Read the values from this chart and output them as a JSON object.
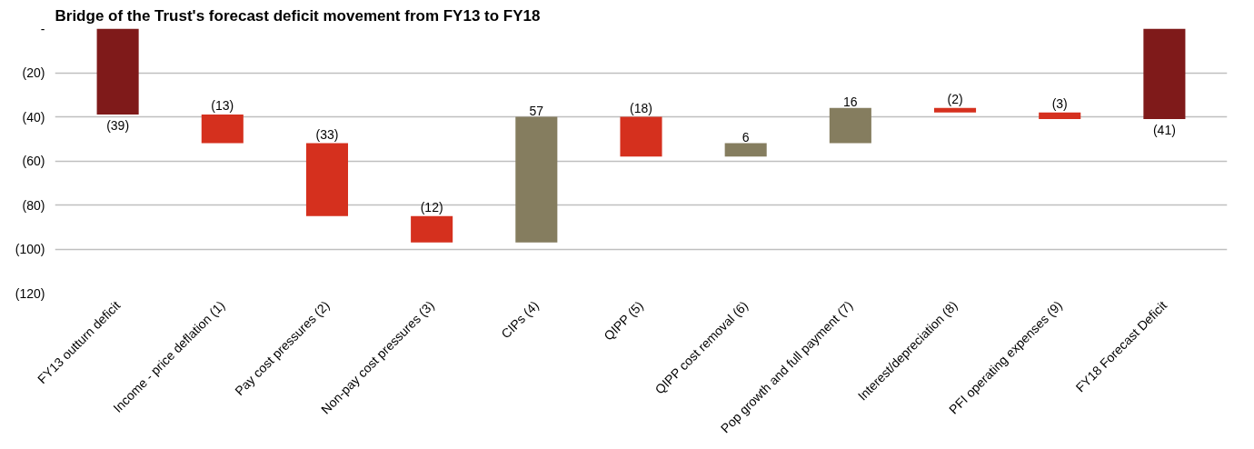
{
  "chart_data": {
    "type": "bar",
    "title": "Bridge of the Trust's forecast deficit movement from FY13 to FY18",
    "categories": [
      "FY13 outturn deficit",
      "Income - price deflation (1)",
      "Pay cost pressures (2)",
      "Non-pay cost pressures (3)",
      "CIPs (4)",
      "QIPP (5)",
      "QIPP cost removal (6)",
      "Pop growth and full payment (7)",
      "Interest/depreciation (8)",
      "PFI operating expenses (9)",
      "FY18 Forecast Deficit"
    ],
    "values": [
      -39,
      -13,
      -33,
      -12,
      57,
      -18,
      6,
      16,
      -2,
      -3,
      -41
    ],
    "base": [
      0,
      -39,
      -52,
      -85,
      -97,
      -40,
      -58,
      -52,
      -36,
      -38,
      0
    ],
    "colors": [
      "#7f1a1a",
      "#d5301e",
      "#d5301e",
      "#d5301e",
      "#857d5f",
      "#d5301e",
      "#857d5f",
      "#857d5f",
      "#d5301e",
      "#d5301e",
      "#7f1a1a"
    ],
    "value_labels": [
      "(39)",
      "(13)",
      "(33)",
      "(12)",
      "57",
      "(18)",
      "6",
      "16",
      "(2)",
      "(3)",
      "(41)"
    ],
    "ylim": [
      -120,
      0
    ],
    "yticks": [
      {
        "value": 0,
        "label": "-"
      },
      {
        "value": -20,
        "label": "(20)"
      },
      {
        "value": -40,
        "label": "(40)"
      },
      {
        "value": -60,
        "label": "(60)"
      },
      {
        "value": -80,
        "label": "(80)"
      },
      {
        "value": -100,
        "label": "(100)"
      },
      {
        "value": -120,
        "label": "(120)"
      }
    ],
    "grid": "y"
  }
}
